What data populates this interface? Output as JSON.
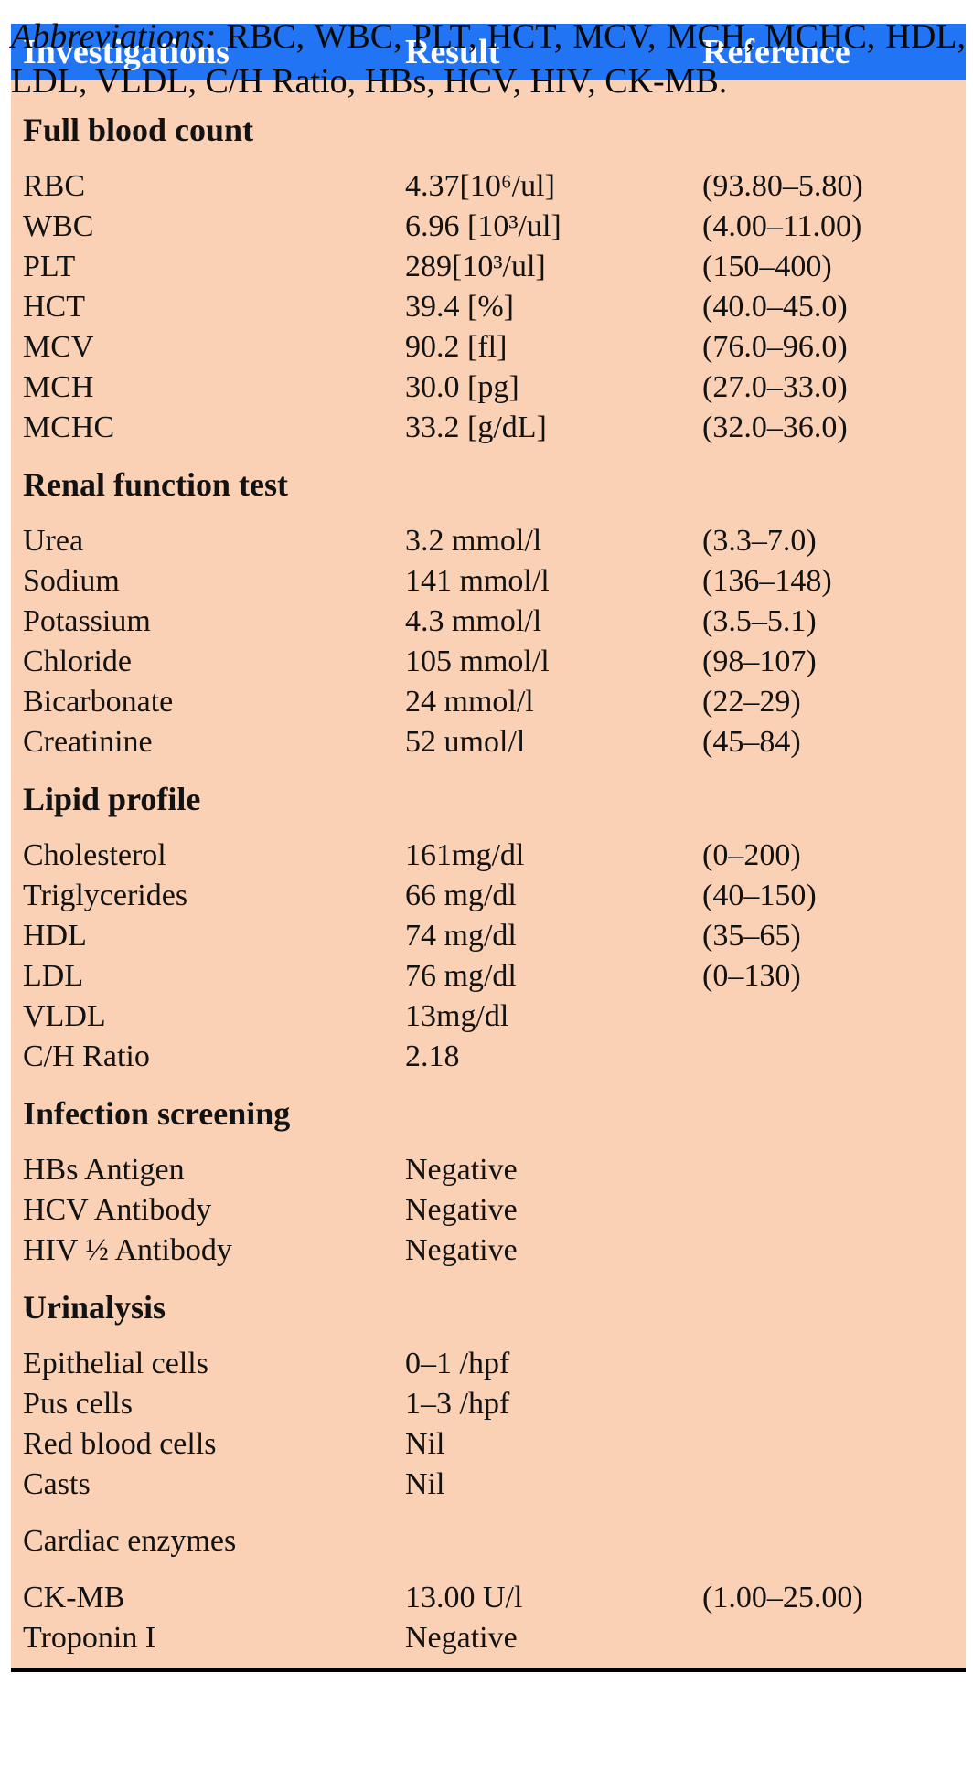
{
  "table": {
    "columns": [
      "Investigations",
      "Result",
      "Reference"
    ],
    "sections": [
      {
        "title": "Full blood count",
        "bold": true,
        "rows": [
          {
            "name": "RBC",
            "result": "4.37[10⁶/ul]",
            "reference": "(93.80–5.80)"
          },
          {
            "name": "WBC",
            "result": "6.96 [10³/ul]",
            "reference": "(4.00–11.00)"
          },
          {
            "name": "PLT",
            "result": "289[10³/ul]",
            "reference": "(150–400)"
          },
          {
            "name": "HCT",
            "result": "39.4 [%]",
            "reference": "(40.0–45.0)"
          },
          {
            "name": "MCV",
            "result": "90.2 [fl]",
            "reference": "(76.0–96.0)"
          },
          {
            "name": "MCH",
            "result": "30.0 [pg]",
            "reference": "(27.0–33.0)"
          },
          {
            "name": "MCHC",
            "result": "33.2 [g/dL]",
            "reference": "(32.0–36.0)"
          }
        ]
      },
      {
        "title": "Renal function test",
        "bold": true,
        "rows": [
          {
            "name": "Urea",
            "result": "3.2 mmol/l",
            "reference": "(3.3–7.0)"
          },
          {
            "name": "Sodium",
            "result": "141 mmol/l",
            "reference": "(136–148)"
          },
          {
            "name": "Potassium",
            "result": "4.3 mmol/l",
            "reference": "(3.5–5.1)"
          },
          {
            "name": "Chloride",
            "result": "105 mmol/l",
            "reference": "(98–107)"
          },
          {
            "name": "Bicarbonate",
            "result": "24 mmol/l",
            "reference": "(22–29)"
          },
          {
            "name": "Creatinine",
            "result": "52 umol/l",
            "reference": "(45–84)"
          }
        ]
      },
      {
        "title": "Lipid profile",
        "bold": true,
        "rows": [
          {
            "name": "Cholesterol",
            "result": "161mg/dl",
            "reference": "(0–200)"
          },
          {
            "name": "Triglycerides",
            "result": "66 mg/dl",
            "reference": "(40–150)"
          },
          {
            "name": "HDL",
            "result": "74 mg/dl",
            "reference": "(35–65)"
          },
          {
            "name": "LDL",
            "result": "76 mg/dl",
            "reference": "(0–130)"
          },
          {
            "name": "VLDL",
            "result": "13mg/dl",
            "reference": ""
          },
          {
            "name": "C/H Ratio",
            "result": "2.18",
            "reference": ""
          }
        ]
      },
      {
        "title": "Infection screening",
        "bold": true,
        "rows": [
          {
            "name": "HBs Antigen",
            "result": "Negative",
            "reference": ""
          },
          {
            "name": "HCV Antibody",
            "result": "Negative",
            "reference": ""
          },
          {
            "name": "HIV ½ Antibody",
            "result": "Negative",
            "reference": ""
          }
        ]
      },
      {
        "title": "Urinalysis",
        "bold": true,
        "rows": [
          {
            "name": "Epithelial cells",
            "result": "0–1 /hpf",
            "reference": ""
          },
          {
            "name": "Pus cells",
            "result": "1–3 /hpf",
            "reference": ""
          },
          {
            "name": "Red blood cells",
            "result": "Nil",
            "reference": ""
          },
          {
            "name": "Casts",
            "result": "Nil",
            "reference": ""
          }
        ]
      },
      {
        "title": "Cardiac enzymes",
        "bold": false,
        "rows": [
          {
            "name": "CK-MB",
            "result": "13.00 U/l",
            "reference": "(1.00–25.00)"
          },
          {
            "name": "Troponin I",
            "result": "Negative",
            "reference": ""
          }
        ]
      }
    ]
  },
  "footer": {
    "label": "Abbreviations:",
    "text": " RBC, WBC, PLT, HCT, MCV, MCH, MCHC, HDL, LDL, VLDL, C/H Ratio, HBs, HCV, HIV, CK-MB."
  },
  "colors": {
    "header_bg": "#2174f3",
    "header_text": "#ffffff",
    "body_bg": "#fbd1b6",
    "body_text": "#121212",
    "bottom_rule": "#000000"
  }
}
